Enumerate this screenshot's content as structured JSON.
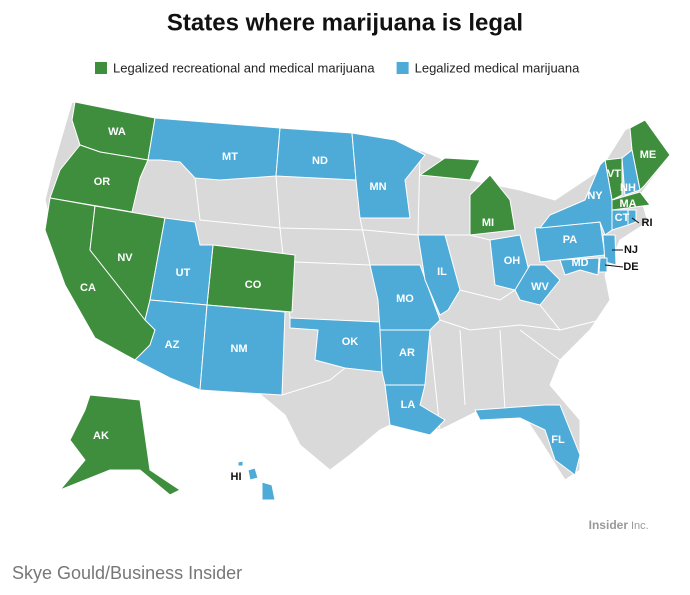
{
  "title": "States where marijuana is legal",
  "legend": [
    {
      "label": "Legalized recreational and medical marijuana",
      "color": "#3e8e3e",
      "states": [
        "WA",
        "OR",
        "CA",
        "NV",
        "CO",
        "MI",
        "ME",
        "VT",
        "MA",
        "AK"
      ]
    },
    {
      "label": "Legalized medical marijuana",
      "color": "#4eaad6",
      "states": [
        "MT",
        "ND",
        "MN",
        "UT",
        "AZ",
        "NM",
        "OK",
        "MO",
        "AR",
        "LA",
        "IL",
        "OH",
        "WV",
        "PA",
        "NY",
        "NH",
        "CT",
        "RI",
        "NJ",
        "MD",
        "DE",
        "FL",
        "HI"
      ]
    }
  ],
  "logo": "Insider",
  "logo_suffix": "Inc.",
  "credit": "Skye Gould/Business Insider"
}
